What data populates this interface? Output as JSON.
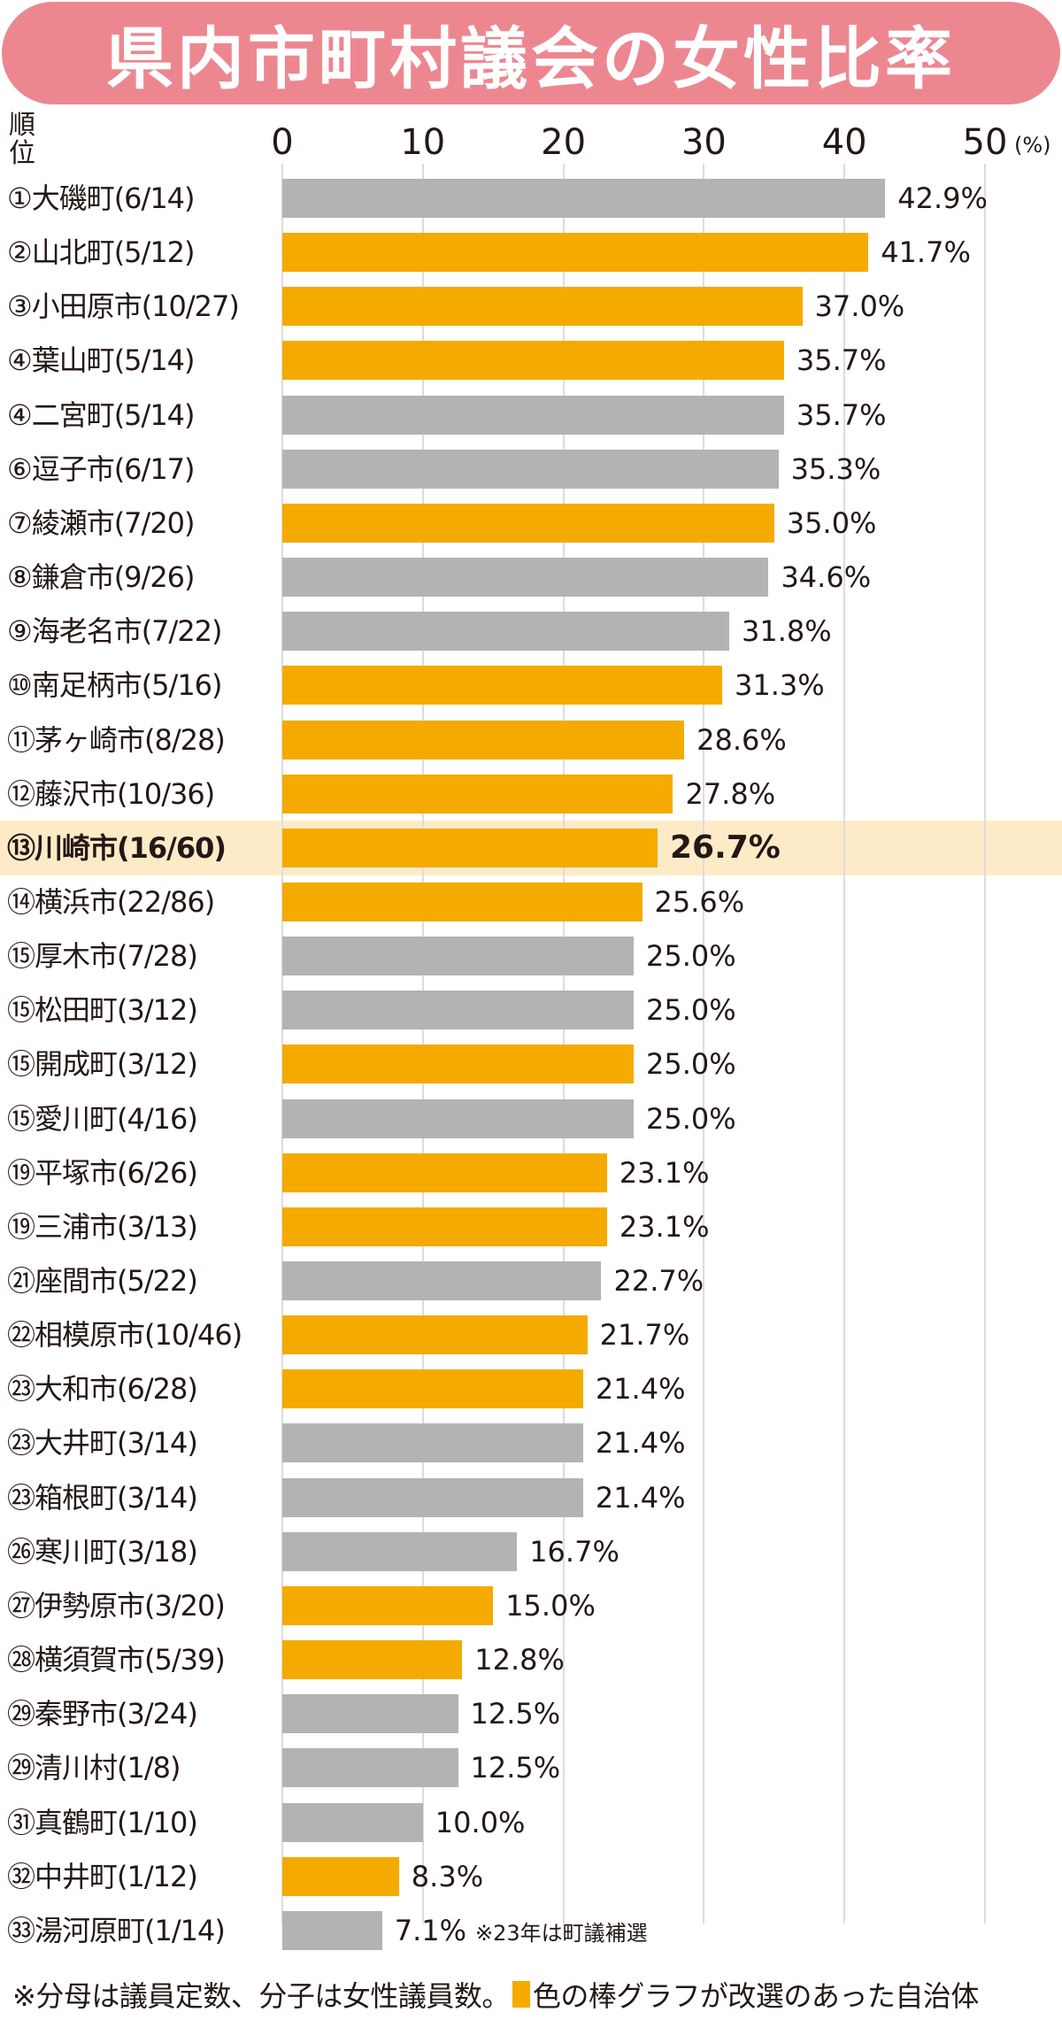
{
  "chart_data": {
    "type": "bar",
    "orientation": "horizontal",
    "title": "県内市町村議会の女性比率",
    "rank_header": "順位",
    "unit": "(%)",
    "xlim": [
      0,
      50
    ],
    "ticks": [
      "0",
      "10",
      "20",
      "30",
      "40",
      "50"
    ],
    "colors": {
      "reelected": "#f5aa00",
      "other": "#b3b3b3",
      "highlight_bg": "#fdebc8",
      "title_bg": "#ec8790"
    },
    "categories": [
      "①大磯町(6/14)",
      "②山北町(5/12)",
      "③小田原市(10/27)",
      "④葉山町(5/14)",
      "④二宮町(5/14)",
      "⑥逗子市(6/17)",
      "⑦綾瀬市(7/20)",
      "⑧鎌倉市(9/26)",
      "⑨海老名市(7/22)",
      "⑩南足柄市(5/16)",
      "⑪茅ヶ崎市(8/28)",
      "⑫藤沢市(10/36)",
      "⑬川崎市(16/60)",
      "⑭横浜市(22/86)",
      "⑮厚木市(7/28)",
      "⑮松田町(3/12)",
      "⑮開成町(3/12)",
      "⑮愛川町(4/16)",
      "⑲平塚市(6/26)",
      "⑲三浦市(3/13)",
      "㉑座間市(5/22)",
      "㉒相模原市(10/46)",
      "㉓大和市(6/28)",
      "㉓大井町(3/14)",
      "㉓箱根町(3/14)",
      "㉖寒川町(3/18)",
      "㉗伊勢原市(3/20)",
      "㉘横須賀市(5/39)",
      "㉙秦野市(3/24)",
      "㉙清川村(1/8)",
      "㉛真鶴町(1/10)",
      "㉜中井町(1/12)",
      "㉝湯河原町(1/14)"
    ],
    "values": [
      42.9,
      41.7,
      37.0,
      35.7,
      35.7,
      35.3,
      35.0,
      34.6,
      31.8,
      31.3,
      28.6,
      27.8,
      26.7,
      25.6,
      25.0,
      25.0,
      25.0,
      25.0,
      23.1,
      23.1,
      22.7,
      21.7,
      21.4,
      21.4,
      21.4,
      16.7,
      15.0,
      12.8,
      12.5,
      12.5,
      10.0,
      8.3,
      7.1
    ],
    "value_labels": [
      "42.9%",
      "41.7%",
      "37.0%",
      "35.7%",
      "35.7%",
      "35.3%",
      "35.0%",
      "34.6%",
      "31.8%",
      "31.3%",
      "28.6%",
      "27.8%",
      "26.7%",
      "25.6%",
      "25.0%",
      "25.0%",
      "25.0%",
      "25.0%",
      "23.1%",
      "23.1%",
      "22.7%",
      "21.7%",
      "21.4%",
      "21.4%",
      "21.4%",
      "16.7%",
      "15.0%",
      "12.8%",
      "12.5%",
      "12.5%",
      "10.0%",
      "8.3%",
      "7.1%"
    ],
    "reelected": [
      false,
      true,
      true,
      true,
      false,
      false,
      true,
      false,
      false,
      true,
      true,
      true,
      true,
      true,
      false,
      false,
      true,
      false,
      true,
      true,
      false,
      true,
      true,
      false,
      false,
      false,
      true,
      true,
      false,
      false,
      false,
      true,
      false
    ],
    "highlight_index": 12,
    "annotations": {
      "last_row_note": "※23年は町議補選"
    },
    "footnote_a": "※分母は議員定数、分子は女性議員数。",
    "footnote_b": "色の棒グラフが改選のあった自治体"
  }
}
